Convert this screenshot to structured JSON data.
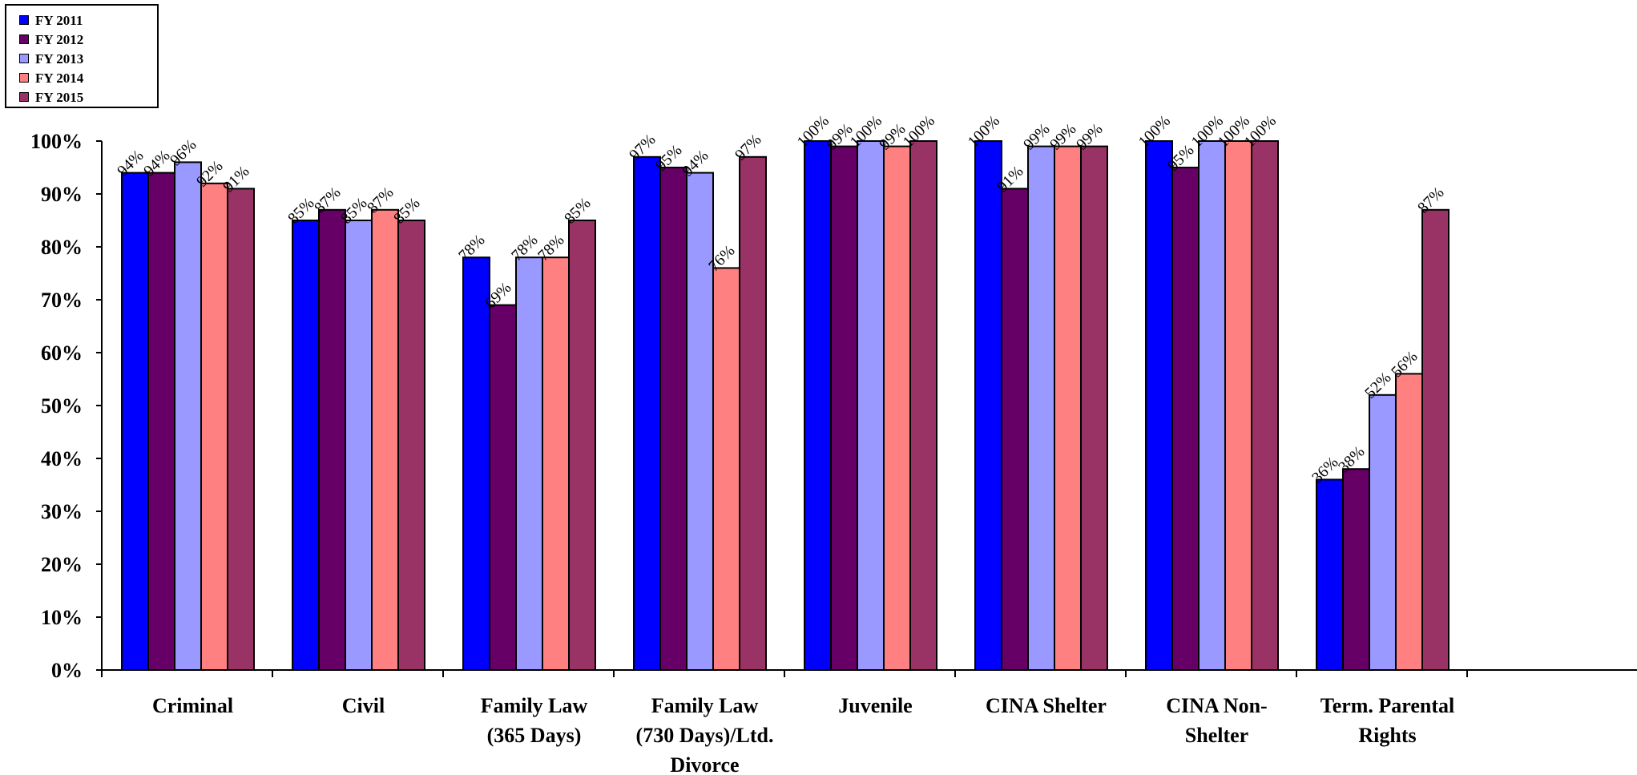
{
  "chart_data": {
    "type": "bar",
    "title": "",
    "xlabel": "",
    "ylabel": "",
    "ylim": [
      0,
      100
    ],
    "y_ticks": [
      "0%",
      "10%",
      "20%",
      "30%",
      "40%",
      "50%",
      "60%",
      "70%",
      "80%",
      "90%",
      "100%"
    ],
    "y_tick_values": [
      0,
      10,
      20,
      30,
      40,
      50,
      60,
      70,
      80,
      90,
      100
    ],
    "grid": false,
    "legend_position": "top-left",
    "categories": [
      [
        "Criminal"
      ],
      [
        "Civil"
      ],
      [
        "Family Law",
        "(365 Days)"
      ],
      [
        "Family Law",
        "(730 Days)/Ltd.",
        "Divorce"
      ],
      [
        "Juvenile"
      ],
      [
        "CINA Shelter"
      ],
      [
        "CINA Non-",
        "Shelter"
      ],
      [
        "Term. Parental",
        "Rights"
      ]
    ],
    "series": [
      {
        "name": "FY 2011",
        "color": "#0000FF",
        "values": [
          94,
          85,
          78,
          97,
          100,
          100,
          100,
          36
        ]
      },
      {
        "name": "FY 2012",
        "color": "#660066",
        "values": [
          94,
          87,
          69,
          95,
          99,
          91,
          95,
          38
        ]
      },
      {
        "name": "FY 2013",
        "color": "#9999FF",
        "values": [
          96,
          85,
          78,
          94,
          100,
          99,
          100,
          52
        ]
      },
      {
        "name": "FY 2014",
        "color": "#FF8080",
        "values": [
          92,
          87,
          78,
          76,
          99,
          99,
          100,
          56
        ]
      },
      {
        "name": "FY 2015",
        "color": "#993366",
        "values": [
          91,
          85,
          85,
          97,
          100,
          99,
          100,
          87
        ]
      }
    ],
    "data_label_suffix": "%"
  }
}
